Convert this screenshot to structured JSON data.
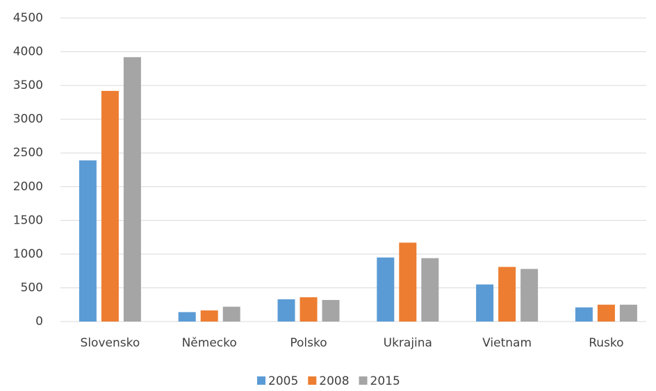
{
  "chart_data": {
    "type": "bar",
    "categories": [
      "Slovensko",
      "Německo",
      "Polsko",
      "Ukrajina",
      "Vietnam",
      "Rusko"
    ],
    "series": [
      {
        "name": "2005",
        "color": "#5b9bd5",
        "values": [
          2390,
          140,
          330,
          950,
          550,
          210
        ]
      },
      {
        "name": "2008",
        "color": "#ed7d31",
        "values": [
          3420,
          165,
          360,
          1170,
          810,
          250
        ]
      },
      {
        "name": "2015",
        "color": "#a5a5a5",
        "values": [
          3920,
          220,
          320,
          940,
          780,
          250
        ]
      }
    ],
    "ylim": [
      0,
      4500
    ],
    "yticks": [
      0,
      500,
      1000,
      1500,
      2000,
      2500,
      3000,
      3500,
      4000,
      4500
    ],
    "grid": true,
    "legend": "bottom"
  }
}
